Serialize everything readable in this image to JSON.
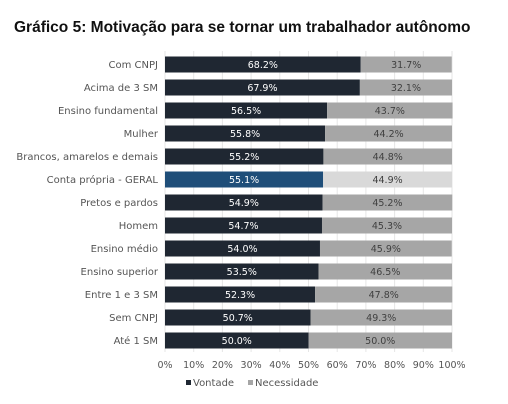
{
  "title": "Gráfico 5: Motivação para se tornar um trabalhador autônomo",
  "chart_data": {
    "type": "bar",
    "orientation": "horizontal",
    "stacked": true,
    "categories": [
      "Com CNPJ",
      "Acima de 3 SM",
      "Ensino fundamental",
      "Mulher",
      "Brancos, amarelos e demais",
      "Conta própria - GERAL",
      "Pretos e pardos",
      "Homem",
      "Ensino médio",
      "Ensino superior",
      "Entre 1 e 3 SM",
      "Sem CNPJ",
      "Até 1 SM"
    ],
    "series": [
      {
        "name": "Vontade",
        "color": "#1f2732",
        "highlight_color": "#1f4e79",
        "values": [
          68.2,
          67.9,
          56.5,
          55.8,
          55.2,
          55.1,
          54.9,
          54.7,
          54.0,
          53.5,
          52.3,
          50.7,
          50.0
        ],
        "labels": [
          "68.2%",
          "67.9%",
          "56.5%",
          "55.8%",
          "55.2%",
          "55.1%",
          "54.9%",
          "54.7%",
          "54.0%",
          "53.5%",
          "52.3%",
          "50.7%",
          "50.0%"
        ]
      },
      {
        "name": "Necessidade",
        "color": "#a6a6a6",
        "highlight_color": "#d9d9d9",
        "values": [
          31.7,
          32.1,
          43.7,
          44.2,
          44.8,
          44.9,
          45.2,
          45.3,
          45.9,
          46.5,
          47.8,
          49.3,
          50.0
        ],
        "labels": [
          "31.7%",
          "32.1%",
          "43.7%",
          "44.2%",
          "44.8%",
          "44.9%",
          "45.2%",
          "45.3%",
          "45.9%",
          "46.5%",
          "47.8%",
          "49.3%",
          "50.0%"
        ]
      }
    ],
    "highlight_category": "Conta própria - GERAL",
    "xlim": [
      0,
      100
    ],
    "x_ticks": [
      "0%",
      "10%",
      "20%",
      "30%",
      "40%",
      "50%",
      "60%",
      "70%",
      "80%",
      "90%",
      "100%"
    ],
    "grid": true,
    "legend": "bottom"
  }
}
